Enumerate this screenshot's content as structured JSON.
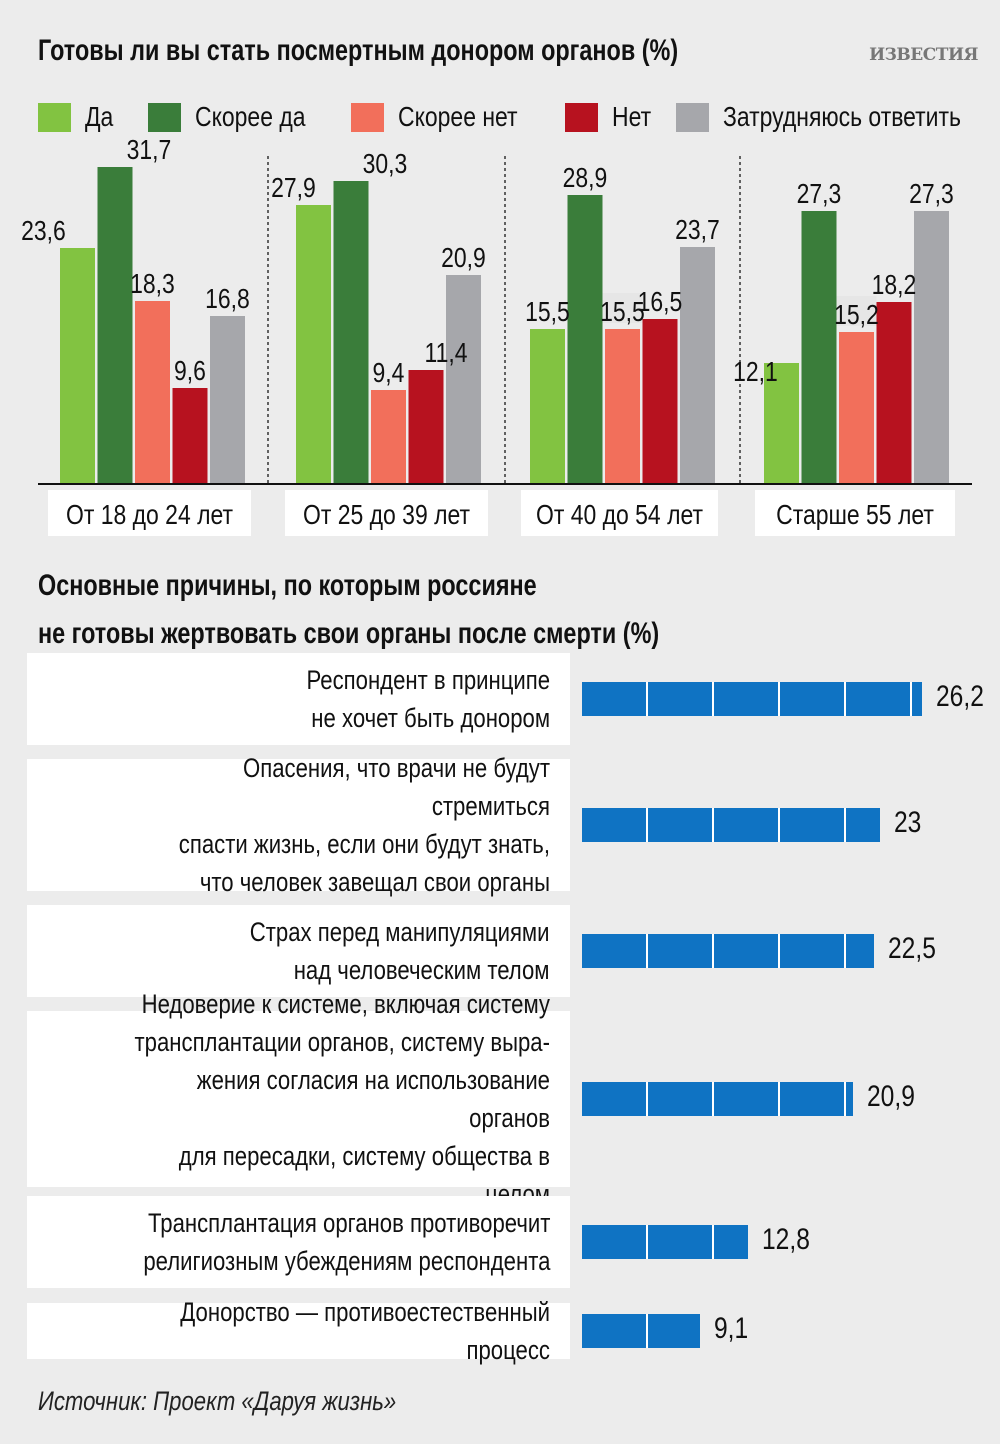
{
  "publisher": "ИЗВЕСТИЯ",
  "chart_data": [
    {
      "type": "bar",
      "title": "Готовы ли вы стать посмертным донором органов (%)",
      "categories": [
        "От 18 до 24 лет",
        "От 25 до 39 лет",
        "От 40 до 54 лет",
        "Старше 55 лет"
      ],
      "series": [
        {
          "name": "Да",
          "color": "#82c341",
          "values": [
            23.6,
            27.9,
            15.5,
            12.1
          ],
          "labels": [
            "23,6",
            "27,9",
            "15,5",
            "12,1"
          ]
        },
        {
          "name": "Скорее да",
          "color": "#3a7d3a",
          "values": [
            31.7,
            30.3,
            28.9,
            27.3
          ],
          "labels": [
            "31,7",
            "30,3",
            "28,9",
            "27,3"
          ]
        },
        {
          "name": "Скорее нет",
          "color": "#f26f5b",
          "values": [
            18.3,
            9.4,
            15.5,
            15.2
          ],
          "labels": [
            "18,3",
            "9,4",
            "15,5",
            "15,2"
          ]
        },
        {
          "name": "Нет",
          "color": "#b7121f",
          "values": [
            9.6,
            11.4,
            16.5,
            18.2
          ],
          "labels": [
            "9,6",
            "11,4",
            "16,5",
            "18,2"
          ]
        },
        {
          "name": "Затрудняюсь ответить",
          "color": "#a6a7ab",
          "values": [
            16.8,
            20.9,
            23.7,
            27.3
          ],
          "labels": [
            "16,8",
            "20,9",
            "23,7",
            "27,3"
          ]
        }
      ],
      "ylim": [
        0,
        33
      ],
      "legend": "top"
    },
    {
      "type": "bar",
      "orientation": "horizontal",
      "title": "Основные причины, по которым россияне\nне готовы жертвовать свои органы после смерти (%)",
      "bar_color": "#0f73c3",
      "categories": [
        "Респондент в принципе\nне хочет быть донором",
        "Опасения, что врачи не будут стремиться\nспасти жизнь, если они будут знать,\nчто человек завещал свои органы",
        "Страх перед манипуляциями\nнад человеческим телом",
        "Недоверие к системе, включая систему\nтрансплантации органов, систему выра-\nжения согласия на использование органов\nдля пересадки, систему общества в целом",
        "Трансплантация органов противоречит\nрелигиозным убеждениям респондента",
        "Донорство — противоестественный процесс"
      ],
      "values": [
        26.2,
        23,
        22.5,
        20.9,
        12.8,
        9.1
      ],
      "labels": [
        "26,2",
        "23",
        "22,5",
        "20,9",
        "12,8",
        "9,1"
      ]
    }
  ],
  "source": "Источник: Проект «Даруя жизнь»"
}
